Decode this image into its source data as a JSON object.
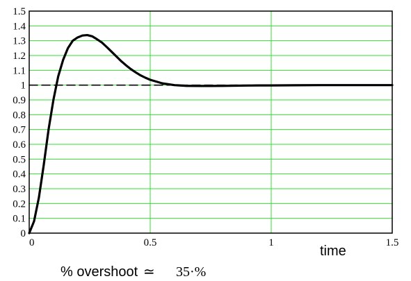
{
  "chart_data": {
    "type": "line",
    "title": "",
    "xlabel": "time",
    "ylabel": "",
    "xlim": [
      0,
      1.5
    ],
    "ylim": [
      0,
      1.5
    ],
    "x_ticks": [
      "0",
      "0.5",
      "1",
      "1.5"
    ],
    "y_ticks": [
      "0",
      "0.1",
      "0.2",
      "0.3",
      "0.4",
      "0.5",
      "0.6",
      "0.7",
      "0.8",
      "0.9",
      "1",
      "1.1",
      "1.2",
      "1.3",
      "1.4",
      "1.5"
    ],
    "grid": true,
    "colors": {
      "grid": "#33dd33",
      "curve": "#000000",
      "reference": "#000000",
      "frame": "#000000"
    },
    "series": [
      {
        "style": "solid",
        "x": [
          0,
          0.02,
          0.04,
          0.06,
          0.08,
          0.1,
          0.12,
          0.14,
          0.16,
          0.18,
          0.2,
          0.22,
          0.24,
          0.26,
          0.28,
          0.3,
          0.32,
          0.34,
          0.36,
          0.38,
          0.4,
          0.42,
          0.44,
          0.46,
          0.48,
          0.5,
          0.55,
          0.6,
          0.65,
          0.7,
          0.75,
          0.8,
          0.85,
          0.9,
          0.95,
          1.0,
          1.1,
          1.2,
          1.3,
          1.4,
          1.5
        ],
        "y": [
          0,
          0.08,
          0.24,
          0.46,
          0.7,
          0.9,
          1.06,
          1.17,
          1.25,
          1.3,
          1.322,
          1.335,
          1.338,
          1.33,
          1.31,
          1.288,
          1.258,
          1.226,
          1.194,
          1.162,
          1.134,
          1.108,
          1.086,
          1.066,
          1.05,
          1.036,
          1.012,
          1.0,
          0.995,
          0.994,
          0.994,
          0.995,
          0.996,
          0.997,
          0.998,
          0.998,
          0.999,
          1.0,
          1.0,
          1.0,
          1.0
        ]
      },
      {
        "style": "dashed",
        "x": [
          0,
          1.5
        ],
        "y": [
          1,
          1
        ]
      }
    ]
  },
  "annotation": {
    "label": "% overshoot",
    "symbol": "≃",
    "value": "35·%"
  }
}
